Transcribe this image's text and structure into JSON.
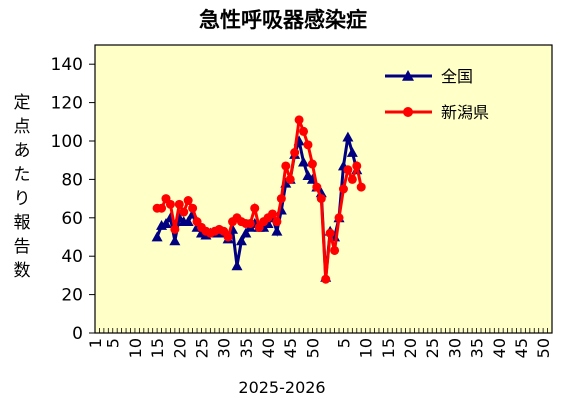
{
  "chart_data": {
    "type": "line",
    "title": "急性呼吸器感染症",
    "xlabel": "2025-2026",
    "ylabel": "定点あたり報告数",
    "ylim": [
      0,
      150
    ],
    "yticks": [
      "0",
      "20",
      "40",
      "60",
      "80",
      "100",
      "120",
      "140"
    ],
    "ytick_values": [
      0,
      20,
      40,
      60,
      80,
      100,
      120,
      140
    ],
    "xticks": [
      "1",
      "5",
      "10",
      "15",
      "20",
      "25",
      "30",
      "35",
      "40",
      "45",
      "50",
      "5",
      "10",
      "15",
      "20",
      "25",
      "30",
      "35",
      "40",
      "45",
      "50"
    ],
    "xtick_positions": [
      1,
      5,
      10,
      15,
      20,
      25,
      30,
      35,
      40,
      45,
      50,
      57,
      62,
      67,
      72,
      77,
      82,
      87,
      92,
      97,
      102
    ],
    "xlim": [
      1,
      104
    ],
    "grid": false,
    "background": "#ffffc8",
    "legend_position": "top-right",
    "series": [
      {
        "name": "全国",
        "color": "#000080",
        "marker": "triangle",
        "x": [
          15,
          16,
          17,
          18,
          19,
          20,
          21,
          22,
          23,
          24,
          25,
          26,
          27,
          28,
          29,
          30,
          31,
          32,
          33,
          34,
          35,
          36,
          37,
          38,
          39,
          40,
          41,
          42,
          43,
          44,
          45,
          46,
          47,
          48,
          49,
          50,
          51,
          52,
          53,
          54,
          55,
          56,
          57,
          58,
          59,
          60
        ],
        "y": [
          50,
          56,
          57,
          60,
          48,
          60,
          58,
          58,
          62,
          55,
          52,
          51,
          52,
          52,
          53,
          52,
          49,
          54,
          35,
          48,
          52,
          55,
          57,
          55,
          55,
          57,
          60,
          53,
          64,
          78,
          80,
          93,
          100,
          89,
          82,
          80,
          76,
          73,
          29,
          53,
          50,
          60,
          87,
          102,
          94,
          85
        ]
      },
      {
        "name": "新潟県",
        "color": "#ff0000",
        "marker": "circle",
        "x": [
          15,
          16,
          17,
          18,
          19,
          20,
          21,
          22,
          23,
          24,
          25,
          26,
          27,
          28,
          29,
          30,
          31,
          32,
          33,
          34,
          35,
          36,
          37,
          38,
          39,
          40,
          41,
          42,
          43,
          44,
          45,
          46,
          47,
          48,
          49,
          50,
          51,
          52,
          53,
          54,
          55,
          56,
          57,
          58,
          59,
          60,
          61
        ],
        "y": [
          65,
          65,
          70,
          67,
          54,
          67,
          63,
          69,
          65,
          58,
          55,
          53,
          52,
          53,
          54,
          53,
          50,
          58,
          60,
          58,
          57,
          57,
          65,
          55,
          58,
          60,
          62,
          58,
          70,
          87,
          80,
          94,
          111,
          105,
          98,
          88,
          76,
          70,
          28,
          52,
          43,
          60,
          75,
          85,
          80,
          87,
          76
        ]
      }
    ]
  }
}
